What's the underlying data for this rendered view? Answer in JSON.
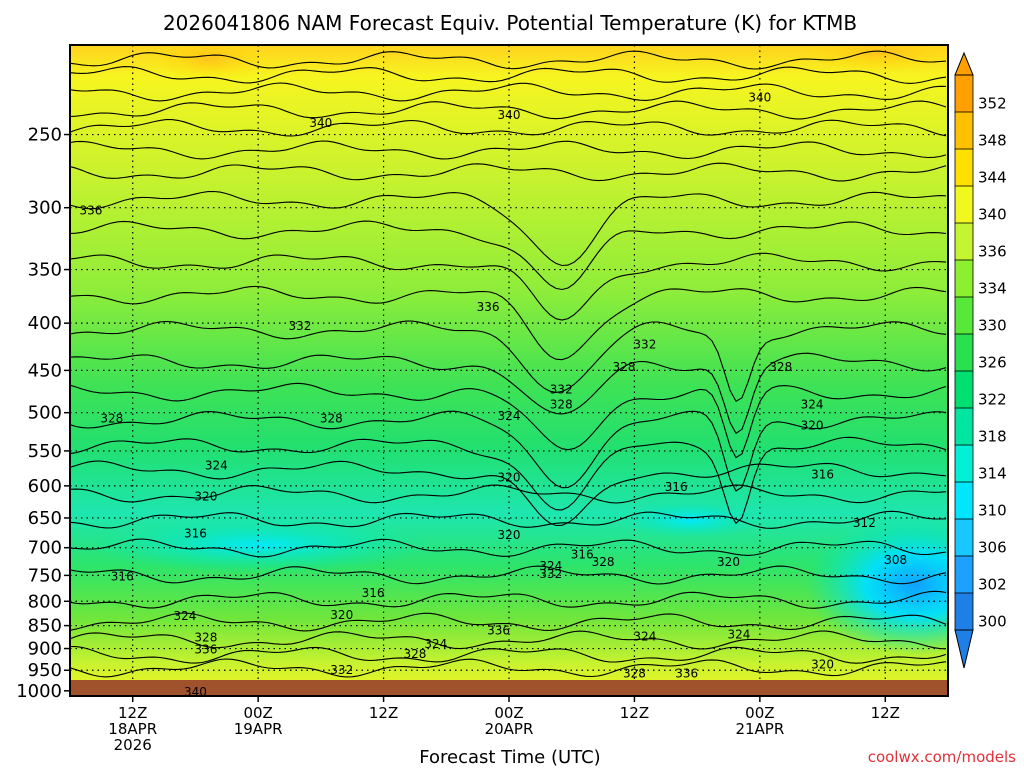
{
  "chart_data": {
    "type": "contour",
    "title": "2026041806 NAM Forecast Equiv. Potential Temperature (K) for KTMB",
    "xlabel": "Forecast Time (UTC)",
    "ylabel": "",
    "x_ticks": [
      {
        "hour": 6,
        "lines": [
          "12Z",
          "18APR",
          "2026"
        ]
      },
      {
        "hour": 18,
        "lines": [
          "00Z",
          "19APR"
        ]
      },
      {
        "hour": 30,
        "lines": [
          "12Z"
        ]
      },
      {
        "hour": 42,
        "lines": [
          "00Z",
          "20APR"
        ]
      },
      {
        "hour": 54,
        "lines": [
          "12Z"
        ]
      },
      {
        "hour": 66,
        "lines": [
          "00Z",
          "21APR"
        ]
      },
      {
        "hour": 78,
        "lines": [
          "12Z"
        ]
      }
    ],
    "x_range_hours": [
      0,
      84
    ],
    "y_ticks": [
      250,
      300,
      350,
      400,
      450,
      500,
      550,
      600,
      650,
      700,
      750,
      800,
      850,
      900,
      950,
      1000
    ],
    "y_range_hpa": [
      200,
      1013
    ],
    "y_scale": "log-pressure",
    "colorbar": {
      "levels": [
        300,
        302,
        306,
        310,
        314,
        318,
        322,
        326,
        330,
        334,
        336,
        340,
        344,
        348,
        352
      ],
      "colors": [
        "#1e7fe6",
        "#1ea0ff",
        "#18c8ff",
        "#00e6ff",
        "#00f0d8",
        "#00e6a0",
        "#00e070",
        "#28e050",
        "#58e83a",
        "#8cf030",
        "#c4f530",
        "#f0f820",
        "#ffe000",
        "#ffc000",
        "#ffa000"
      ],
      "extend": "both"
    },
    "contour_labels": [
      {
        "text": "340",
        "h": 24,
        "p": 243
      },
      {
        "text": "340",
        "h": 42,
        "p": 238
      },
      {
        "text": "340",
        "h": 66,
        "p": 228
      },
      {
        "text": "336",
        "h": 2,
        "p": 302
      },
      {
        "text": "336",
        "h": 40,
        "p": 384
      },
      {
        "text": "332",
        "h": 22,
        "p": 403
      },
      {
        "text": "332",
        "h": 55,
        "p": 422
      },
      {
        "text": "332",
        "h": 47,
        "p": 472
      },
      {
        "text": "328",
        "h": 4,
        "p": 507
      },
      {
        "text": "328",
        "h": 25,
        "p": 507
      },
      {
        "text": "328",
        "h": 53,
        "p": 446
      },
      {
        "text": "328",
        "h": 68,
        "p": 446
      },
      {
        "text": "328",
        "h": 47,
        "p": 490
      },
      {
        "text": "324",
        "h": 14,
        "p": 570
      },
      {
        "text": "324",
        "h": 42,
        "p": 504
      },
      {
        "text": "324",
        "h": 71,
        "p": 490
      },
      {
        "text": "324",
        "h": 11,
        "p": 830
      },
      {
        "text": "324",
        "h": 46,
        "p": 733
      },
      {
        "text": "324",
        "h": 35,
        "p": 890
      },
      {
        "text": "324",
        "h": 55,
        "p": 873
      },
      {
        "text": "324",
        "h": 64,
        "p": 869
      },
      {
        "text": "320",
        "h": 13,
        "p": 616
      },
      {
        "text": "320",
        "h": 42,
        "p": 588
      },
      {
        "text": "320",
        "h": 26,
        "p": 828
      },
      {
        "text": "320",
        "h": 42,
        "p": 678
      },
      {
        "text": "320",
        "h": 63,
        "p": 725
      },
      {
        "text": "320",
        "h": 71,
        "p": 516
      },
      {
        "text": "320",
        "h": 72,
        "p": 936
      },
      {
        "text": "316",
        "h": 12,
        "p": 676
      },
      {
        "text": "316",
        "h": 5,
        "p": 752
      },
      {
        "text": "316",
        "h": 29,
        "p": 784
      },
      {
        "text": "316",
        "h": 49,
        "p": 712
      },
      {
        "text": "316",
        "h": 58,
        "p": 602
      },
      {
        "text": "316",
        "h": 72,
        "p": 583
      },
      {
        "text": "312",
        "h": 76,
        "p": 658
      },
      {
        "text": "308",
        "h": 79,
        "p": 722
      },
      {
        "text": "332",
        "h": 46,
        "p": 747
      },
      {
        "text": "328",
        "h": 51,
        "p": 725
      },
      {
        "text": "336",
        "h": 13,
        "p": 902
      },
      {
        "text": "328",
        "h": 13,
        "p": 876
      },
      {
        "text": "328",
        "h": 33,
        "p": 912
      },
      {
        "text": "332",
        "h": 26,
        "p": 950
      },
      {
        "text": "336",
        "h": 41,
        "p": 860
      },
      {
        "text": "328",
        "h": 54,
        "p": 958
      },
      {
        "text": "336",
        "h": 59,
        "p": 958
      },
      {
        "text": "340",
        "h": 12,
        "p": 1003
      }
    ],
    "grid": true,
    "watermark": "coolwx.com/models"
  }
}
